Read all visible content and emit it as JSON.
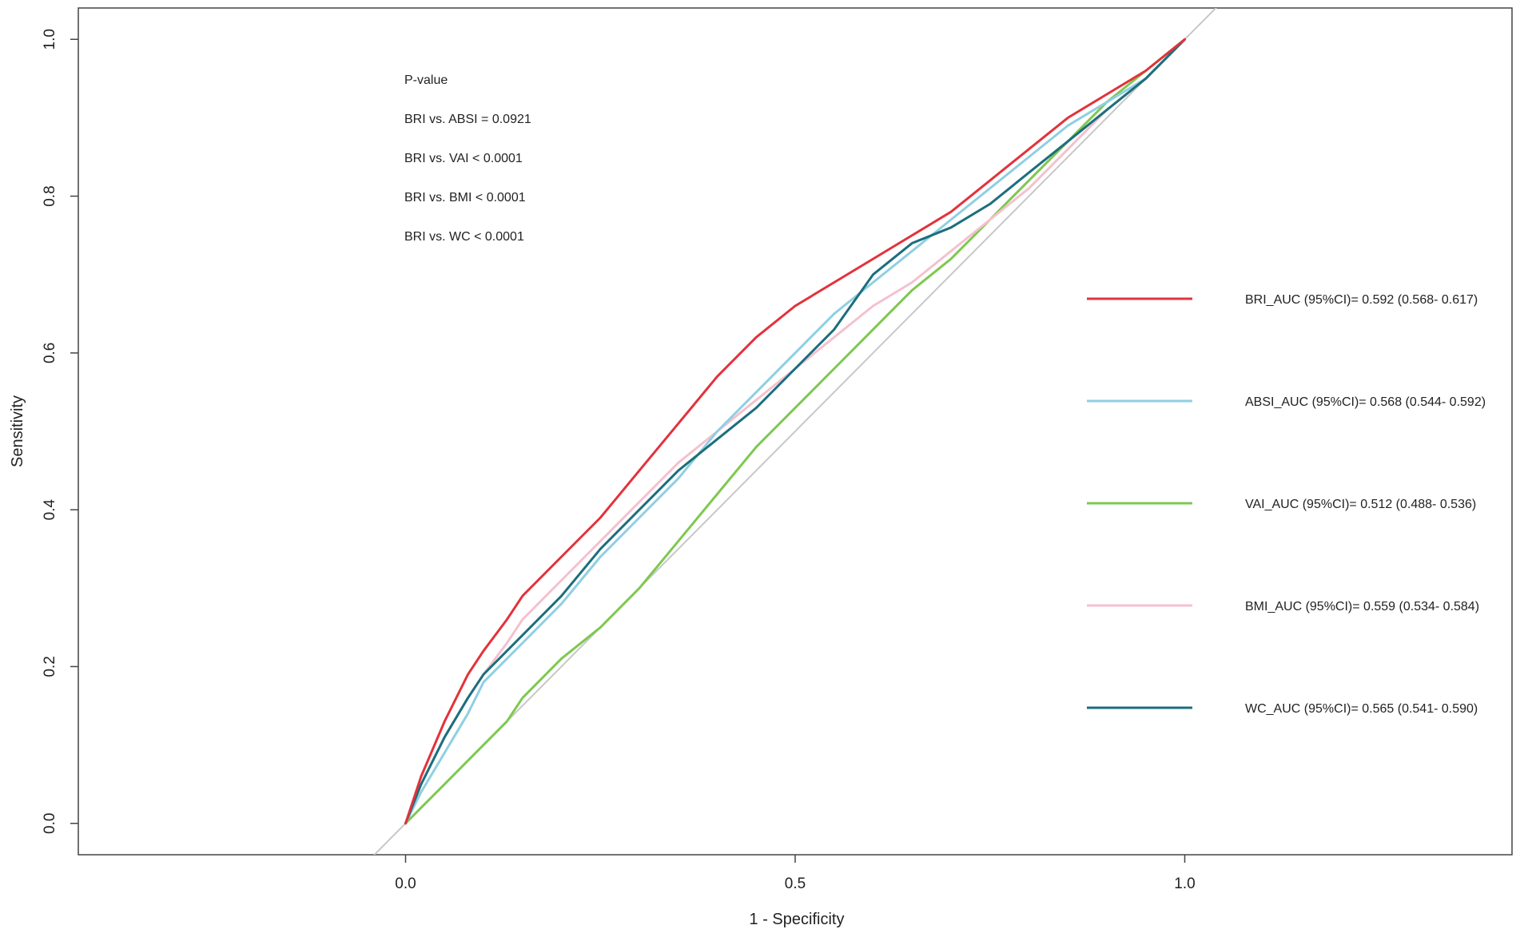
{
  "chart_data": {
    "type": "line",
    "xlabel": "1 - Specificity",
    "ylabel": "Sensitivity",
    "xlim": [
      -0.42,
      1.42
    ],
    "ylim": [
      -0.04,
      1.04
    ],
    "x_ticks": [
      "0.0",
      "0.5",
      "1.0"
    ],
    "y_ticks": [
      "0.0",
      "0.2",
      "0.4",
      "0.6",
      "0.8",
      "1.0"
    ],
    "grid": false,
    "legend_position": "right",
    "annotations": [
      "P-value",
      "BRI vs. ABSI = 0.0921",
      "BRI vs. VAI < 0.0001",
      "BRI vs. BMI < 0.0001",
      "BRI vs. WC < 0.0001"
    ],
    "reference_line": {
      "from": [
        -0.05,
        -0.05
      ],
      "to": [
        1.05,
        1.05
      ],
      "color": "#c8c8c8"
    },
    "series": [
      {
        "name": "BRI_AUC (95%CI)= 0.592 (0.568- 0.617)",
        "color": "#e3323b",
        "x": [
          0,
          0.02,
          0.05,
          0.08,
          0.1,
          0.13,
          0.15,
          0.2,
          0.25,
          0.3,
          0.35,
          0.4,
          0.45,
          0.5,
          0.55,
          0.6,
          0.65,
          0.7,
          0.75,
          0.8,
          0.85,
          0.9,
          0.95,
          1.0
        ],
        "y": [
          0,
          0.06,
          0.13,
          0.19,
          0.22,
          0.26,
          0.29,
          0.34,
          0.39,
          0.45,
          0.51,
          0.57,
          0.62,
          0.66,
          0.69,
          0.72,
          0.75,
          0.78,
          0.82,
          0.86,
          0.9,
          0.93,
          0.96,
          1.0
        ]
      },
      {
        "name": "ABSI_AUC (95%CI)= 0.568 (0.544- 0.592)",
        "color": "#8fcfe3",
        "x": [
          0,
          0.02,
          0.05,
          0.08,
          0.1,
          0.13,
          0.15,
          0.2,
          0.25,
          0.3,
          0.35,
          0.4,
          0.45,
          0.5,
          0.55,
          0.6,
          0.65,
          0.7,
          0.75,
          0.8,
          0.85,
          0.9,
          0.95,
          1.0
        ],
        "y": [
          0,
          0.04,
          0.09,
          0.14,
          0.18,
          0.21,
          0.23,
          0.28,
          0.34,
          0.39,
          0.44,
          0.5,
          0.55,
          0.6,
          0.65,
          0.69,
          0.73,
          0.77,
          0.81,
          0.85,
          0.89,
          0.92,
          0.95,
          1.0
        ]
      },
      {
        "name": "VAI_AUC (95%CI)= 0.512 (0.488- 0.536)",
        "color": "#7ec850",
        "x": [
          0,
          0.02,
          0.05,
          0.08,
          0.1,
          0.13,
          0.15,
          0.2,
          0.25,
          0.3,
          0.35,
          0.4,
          0.45,
          0.5,
          0.55,
          0.6,
          0.65,
          0.7,
          0.75,
          0.8,
          0.85,
          0.9,
          0.95,
          1.0
        ],
        "y": [
          0,
          0.02,
          0.05,
          0.08,
          0.1,
          0.13,
          0.16,
          0.21,
          0.25,
          0.3,
          0.36,
          0.42,
          0.48,
          0.53,
          0.58,
          0.63,
          0.68,
          0.72,
          0.77,
          0.82,
          0.87,
          0.92,
          0.96,
          1.0
        ]
      },
      {
        "name": "BMI_AUC (95%CI)= 0.559 (0.534- 0.584)",
        "color": "#f4c1cf",
        "x": [
          0,
          0.02,
          0.05,
          0.08,
          0.1,
          0.13,
          0.15,
          0.2,
          0.25,
          0.3,
          0.35,
          0.4,
          0.45,
          0.5,
          0.55,
          0.6,
          0.65,
          0.7,
          0.75,
          0.8,
          0.85,
          0.9,
          0.95,
          1.0
        ],
        "y": [
          0,
          0.05,
          0.11,
          0.16,
          0.19,
          0.23,
          0.26,
          0.31,
          0.36,
          0.41,
          0.46,
          0.5,
          0.54,
          0.58,
          0.62,
          0.66,
          0.69,
          0.73,
          0.77,
          0.81,
          0.86,
          0.91,
          0.95,
          1.0
        ]
      },
      {
        "name": "WC_AUC (95%CI)= 0.565 (0.541- 0.590)",
        "color": "#1c6e7d",
        "x": [
          0,
          0.02,
          0.05,
          0.08,
          0.1,
          0.13,
          0.15,
          0.2,
          0.25,
          0.3,
          0.35,
          0.4,
          0.45,
          0.5,
          0.55,
          0.6,
          0.65,
          0.7,
          0.75,
          0.8,
          0.85,
          0.9,
          0.95,
          1.0
        ],
        "y": [
          0,
          0.05,
          0.11,
          0.16,
          0.19,
          0.22,
          0.24,
          0.29,
          0.35,
          0.4,
          0.45,
          0.49,
          0.53,
          0.58,
          0.63,
          0.7,
          0.74,
          0.76,
          0.79,
          0.83,
          0.87,
          0.91,
          0.95,
          1.0
        ]
      }
    ]
  }
}
